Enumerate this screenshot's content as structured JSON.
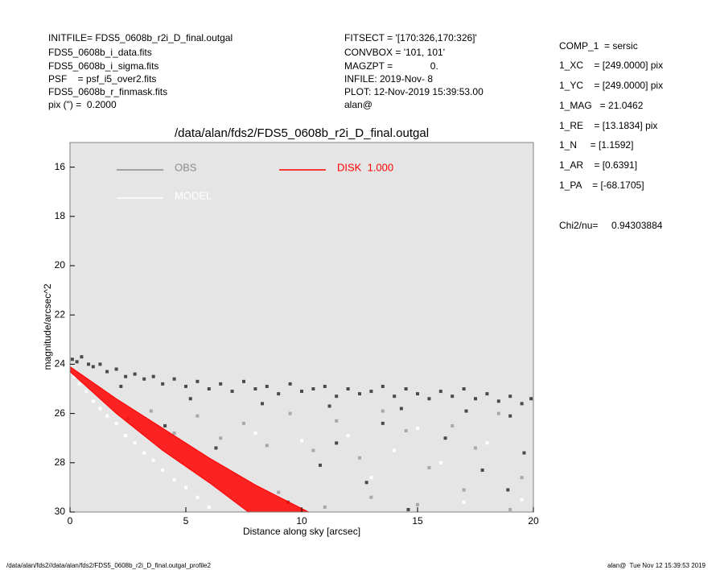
{
  "header": {
    "left": [
      "INITFILE= FDS5_0608b_r2i_D_final.outgal",
      "FDS5_0608b_i_data.fits",
      "FDS5_0608b_i_sigma.fits",
      "PSF    = psf_i5_over2.fits",
      "FDS5_0608b_r_finmask.fits",
      "pix (\") =  0.2000"
    ],
    "middle": [
      "FITSECT = '[170:326,170:326]'",
      "CONVBOX = '101, 101'",
      "MAGZPT =              0.",
      "INFILE: 2019-Nov- 8",
      "PLOT: 12-Nov-2019 15:39:53.00",
      "alan@"
    ],
    "right": [
      "COMP_1  = sersic",
      "1_XC    = [249.0000] pix",
      "1_YC    = [249.0000] pix",
      "1_MAG   = 21.0462",
      "1_RE    = [13.1834] pix",
      "1_N     = [1.1592]",
      "1_AR    = [0.6391]",
      "1_PA    = [-68.1705]"
    ],
    "chi2": "Chi2/nu=     0.94303884"
  },
  "footer": {
    "left": "/data/alan/fds2//data/alan/fds2/FDS5_0608b_r2i_D_final.outgal_profile2",
    "right": "alan@  Tue Nov 12 15:39:53 2019"
  },
  "chart_data": {
    "type": "scatter",
    "title": "/data/alan/fds2/FDS5_0608b_r2i_D_final.outgal",
    "x_label": "Distance along sky [arcsec]",
    "y_label": "magnitude/arcsec^2",
    "xlim": [
      0,
      20
    ],
    "xticks": [
      0,
      5,
      10,
      15,
      20
    ],
    "ylim": [
      30,
      15
    ],
    "yticks": [
      16,
      18,
      20,
      22,
      24,
      26,
      28,
      30
    ],
    "background": "#e5e5e5",
    "series": [
      {
        "color": "#a8a8a8",
        "style": "points",
        "x": [
          2.5,
          3.5,
          4.5,
          5.5,
          6.5,
          7.5,
          8.5,
          9.5,
          10.5,
          11.5,
          12.5,
          13.5,
          14.5,
          15.5,
          16.5,
          17.5,
          18.5,
          19.5,
          9.0,
          11.0,
          13.0,
          15.0,
          17.0,
          19.0
        ],
        "values": [
          26.2,
          25.9,
          26.8,
          26.1,
          27.0,
          26.4,
          27.3,
          26.0,
          27.5,
          26.3,
          27.8,
          25.9,
          26.7,
          28.2,
          26.5,
          27.4,
          26.0,
          28.6,
          29.2,
          29.8,
          29.4,
          29.7,
          29.1,
          29.9
        ]
      },
      {
        "name": "OBS",
        "color": "#4a4a4a",
        "style": "points",
        "legend_color": "#8c8c8c",
        "x": [
          0.1,
          0.3,
          0.5,
          0.8,
          1.0,
          1.3,
          1.6,
          2.0,
          2.4,
          2.8,
          3.2,
          3.6,
          4.0,
          4.5,
          5.0,
          5.5,
          6.0,
          6.5,
          7.0,
          7.5,
          8.0,
          8.5,
          9.0,
          9.5,
          10.0,
          10.5,
          11.0,
          11.5,
          12.0,
          12.5,
          13.0,
          13.5,
          14.0,
          14.5,
          15.0,
          15.5,
          16.0,
          16.5,
          17.0,
          17.5,
          18.0,
          18.5,
          19.0,
          19.5,
          19.9,
          2.2,
          5.2,
          8.3,
          11.2,
          14.3,
          17.1,
          19.0,
          4.1,
          6.3,
          9.4,
          11.5,
          12.8,
          14.6,
          16.2,
          17.8,
          18.9,
          19.6,
          13.5,
          10.8
        ],
        "values": [
          23.8,
          23.9,
          23.7,
          24.0,
          24.1,
          24.0,
          24.3,
          24.2,
          24.5,
          24.4,
          24.6,
          24.5,
          24.8,
          24.6,
          24.9,
          24.7,
          25.0,
          24.8,
          25.1,
          24.7,
          25.0,
          24.9,
          25.2,
          24.8,
          25.1,
          25.0,
          24.9,
          25.3,
          25.0,
          25.2,
          25.1,
          24.9,
          25.3,
          25.0,
          25.2,
          25.4,
          25.1,
          25.3,
          25.0,
          25.4,
          25.2,
          25.5,
          25.3,
          25.6,
          25.4,
          24.9,
          25.4,
          25.6,
          25.7,
          25.8,
          25.9,
          26.1,
          26.5,
          27.4,
          29.6,
          27.2,
          28.8,
          29.9,
          27.0,
          28.3,
          29.1,
          27.6,
          26.4,
          28.1
        ]
      },
      {
        "name": "MODEL",
        "color": "#ffffff",
        "style": "points",
        "x": [
          0.2,
          0.4,
          0.7,
          1.0,
          1.3,
          1.6,
          2.0,
          2.4,
          2.8,
          3.2,
          3.6,
          4.0,
          4.5,
          5.0,
          5.5,
          6.0,
          8.0,
          10.0,
          12.0,
          14.0,
          16.0,
          18.0,
          19.5,
          13.0,
          15.0,
          17.0
        ],
        "values": [
          24.5,
          24.8,
          25.1,
          25.5,
          25.8,
          26.1,
          26.4,
          26.9,
          27.2,
          27.6,
          27.9,
          28.3,
          28.7,
          29.0,
          29.4,
          29.8,
          26.8,
          27.1,
          26.9,
          27.5,
          28.0,
          27.2,
          29.5,
          28.6,
          26.6,
          29.6
        ]
      },
      {
        "name": "DISK  1.000",
        "color": "#ff0000",
        "style": "band",
        "x": [
          0,
          2,
          4,
          6,
          8,
          10.3,
          7.7,
          6,
          4,
          2,
          0
        ],
        "values": [
          24.1,
          25.4,
          26.6,
          27.8,
          28.9,
          30,
          30,
          28.8,
          27.5,
          26.0,
          24.3
        ]
      }
    ]
  }
}
